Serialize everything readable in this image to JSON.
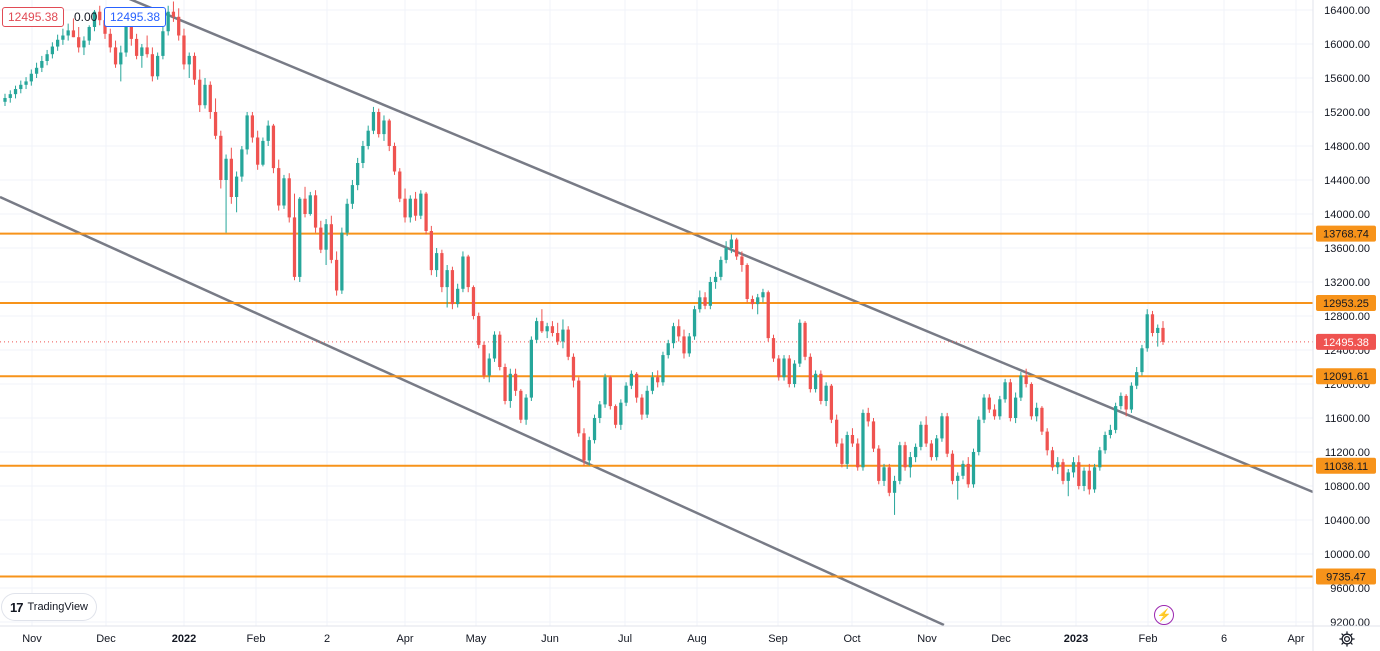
{
  "header": {
    "price_red": "12495.38",
    "change": "0.00",
    "price_blue": "12495.38"
  },
  "branding": {
    "logo_text": "TradingView"
  },
  "colors": {
    "up": "#26a69a",
    "down": "#ef5350",
    "level": "#f7931a",
    "channel": "#787b86"
  },
  "chart_data": {
    "type": "candlestick",
    "y_axis": {
      "min": 9200,
      "max": 16400,
      "ticks": [
        9200,
        9600,
        10000,
        10400,
        10800,
        11200,
        11600,
        12000,
        12400,
        12800,
        13200,
        13600,
        14000,
        14400,
        14800,
        15200,
        15600,
        16000,
        16400
      ]
    },
    "x_axis": {
      "labels": [
        "Nov",
        "Dec",
        "2022",
        "Feb",
        "2",
        "Apr",
        "May",
        "Jun",
        "Jul",
        "Aug",
        "Sep",
        "Oct",
        "Nov",
        "Dec",
        "2023",
        "Feb",
        "6",
        "Apr"
      ]
    },
    "last_price": 12495.38,
    "levels": [
      13768.74,
      12953.25,
      12091.61,
      11038.11,
      9735.47
    ],
    "level_labels": [
      "13768.74",
      "12953.25",
      "12091.61",
      "11038.11",
      "9735.47"
    ],
    "last_price_label": "12495.38",
    "trend_lines": [
      {
        "from": [
          "Dec 2021",
          16500
        ],
        "to": [
          "Apr 2023",
          10700
        ]
      },
      {
        "from": [
          "Nov 2021",
          14200
        ],
        "to": [
          "Nov 2022",
          9100
        ]
      }
    ],
    "candles": [
      [
        15320,
        15415,
        15270,
        15365
      ],
      [
        15365,
        15455,
        15310,
        15410
      ],
      [
        15410,
        15510,
        15360,
        15470
      ],
      [
        15470,
        15570,
        15420,
        15520
      ],
      [
        15520,
        15610,
        15470,
        15560
      ],
      [
        15560,
        15700,
        15510,
        15650
      ],
      [
        15650,
        15780,
        15600,
        15720
      ],
      [
        15720,
        15860,
        15670,
        15800
      ],
      [
        15800,
        15930,
        15750,
        15880
      ],
      [
        15880,
        16020,
        15830,
        15970
      ],
      [
        15970,
        16110,
        15920,
        16050
      ],
      [
        16050,
        16180,
        15990,
        16100
      ],
      [
        16100,
        16240,
        16040,
        16160
      ],
      [
        16160,
        16300,
        16080,
        16080
      ],
      [
        16080,
        16200,
        15900,
        15960
      ],
      [
        15960,
        16090,
        15870,
        16040
      ],
      [
        16040,
        16220,
        15990,
        16200
      ],
      [
        16200,
        16400,
        16150,
        16380
      ],
      [
        16380,
        16450,
        16220,
        16280
      ],
      [
        16280,
        16330,
        16060,
        16120
      ],
      [
        16120,
        16180,
        15900,
        15960
      ],
      [
        15960,
        16040,
        15720,
        15760
      ],
      [
        15760,
        15980,
        15560,
        15900
      ],
      [
        15900,
        16280,
        15850,
        16220
      ],
      [
        16220,
        16300,
        15980,
        16060
      ],
      [
        16060,
        16120,
        15820,
        15860
      ],
      [
        15860,
        16000,
        15720,
        15960
      ],
      [
        15960,
        16100,
        15840,
        15880
      ],
      [
        15880,
        15960,
        15560,
        15620
      ],
      [
        15620,
        15900,
        15580,
        15860
      ],
      [
        15860,
        16200,
        15820,
        16150
      ],
      [
        16150,
        16450,
        16100,
        16380
      ],
      [
        16380,
        16500,
        16260,
        16320
      ],
      [
        16320,
        16420,
        16040,
        16100
      ],
      [
        16100,
        16180,
        15700,
        15760
      ],
      [
        15760,
        15900,
        15600,
        15860
      ],
      [
        15860,
        15900,
        15520,
        15580
      ],
      [
        15580,
        15700,
        15200,
        15280
      ],
      [
        15280,
        15600,
        15240,
        15520
      ],
      [
        15520,
        15560,
        15120,
        15200
      ],
      [
        15200,
        15360,
        14880,
        14920
      ],
      [
        14920,
        14980,
        14300,
        14400
      ],
      [
        14400,
        14700,
        13780,
        14650
      ],
      [
        14650,
        14780,
        14120,
        14200
      ],
      [
        14200,
        14500,
        14020,
        14440
      ],
      [
        14440,
        14800,
        14380,
        14760
      ],
      [
        14760,
        15200,
        14700,
        15160
      ],
      [
        15160,
        15200,
        14840,
        14900
      ],
      [
        14900,
        14980,
        14520,
        14580
      ],
      [
        14580,
        14900,
        14560,
        14860
      ],
      [
        14860,
        15100,
        14800,
        15040
      ],
      [
        15040,
        15060,
        14480,
        14540
      ],
      [
        14540,
        14640,
        14040,
        14100
      ],
      [
        14100,
        14460,
        14060,
        14420
      ],
      [
        14420,
        14480,
        13900,
        13960
      ],
      [
        13960,
        14240,
        13220,
        13260
      ],
      [
        13260,
        14200,
        13200,
        14180
      ],
      [
        14180,
        14320,
        13960,
        14000
      ],
      [
        14000,
        14260,
        13980,
        14220
      ],
      [
        14220,
        14280,
        13780,
        13840
      ],
      [
        13840,
        13920,
        13540,
        13580
      ],
      [
        13580,
        13940,
        13400,
        13880
      ],
      [
        13880,
        13980,
        13420,
        13460
      ],
      [
        13460,
        13560,
        13040,
        13100
      ],
      [
        13100,
        13840,
        13060,
        13780
      ],
      [
        13780,
        14180,
        13740,
        14120
      ],
      [
        14120,
        14400,
        14060,
        14340
      ],
      [
        14340,
        14660,
        14280,
        14600
      ],
      [
        14600,
        14860,
        14540,
        14800
      ],
      [
        14800,
        15040,
        14760,
        14980
      ],
      [
        14980,
        15260,
        14940,
        15200
      ],
      [
        15200,
        15240,
        14900,
        14940
      ],
      [
        14940,
        15160,
        14860,
        15100
      ],
      [
        15100,
        15120,
        14740,
        14800
      ],
      [
        14800,
        14840,
        14460,
        14500
      ],
      [
        14500,
        14540,
        14140,
        14180
      ],
      [
        14180,
        14300,
        13900,
        13960
      ],
      [
        13960,
        14220,
        13900,
        14180
      ],
      [
        14180,
        14260,
        13920,
        13980
      ],
      [
        13980,
        14280,
        13940,
        14240
      ],
      [
        14240,
        14260,
        13760,
        13800
      ],
      [
        13800,
        13860,
        13280,
        13340
      ],
      [
        13340,
        13600,
        13260,
        13540
      ],
      [
        13540,
        13580,
        13080,
        13140
      ],
      [
        13140,
        13400,
        12900,
        13340
      ],
      [
        13340,
        13380,
        12880,
        12940
      ],
      [
        12940,
        13180,
        12900,
        13120
      ],
      [
        13120,
        13560,
        13080,
        13500
      ],
      [
        13500,
        13520,
        13080,
        13140
      ],
      [
        13140,
        13160,
        12760,
        12800
      ],
      [
        12800,
        12840,
        12420,
        12460
      ],
      [
        12460,
        12500,
        12060,
        12100
      ],
      [
        12100,
        12360,
        12020,
        12300
      ],
      [
        12300,
        12620,
        12260,
        12580
      ],
      [
        12580,
        12620,
        12160,
        12200
      ],
      [
        12200,
        12240,
        11760,
        11800
      ],
      [
        11800,
        12180,
        11720,
        12120
      ],
      [
        12120,
        12180,
        11860,
        11920
      ],
      [
        11920,
        11940,
        11540,
        11580
      ],
      [
        11580,
        11880,
        11520,
        11840
      ],
      [
        11840,
        12560,
        11800,
        12520
      ],
      [
        12520,
        12780,
        12480,
        12740
      ],
      [
        12740,
        12880,
        12600,
        12620
      ],
      [
        12620,
        12720,
        12540,
        12680
      ],
      [
        12680,
        12740,
        12560,
        12600
      ],
      [
        12600,
        12720,
        12460,
        12500
      ],
      [
        12500,
        12760,
        12420,
        12640
      ],
      [
        12640,
        12680,
        12280,
        12320
      ],
      [
        12320,
        12360,
        11960,
        12040
      ],
      [
        12040,
        12080,
        11380,
        11420
      ],
      [
        11420,
        11480,
        11040,
        11100
      ],
      [
        11100,
        11380,
        11040,
        11340
      ],
      [
        11340,
        11640,
        11300,
        11600
      ],
      [
        11600,
        11800,
        11540,
        11760
      ],
      [
        11760,
        12120,
        11720,
        12080
      ],
      [
        12080,
        12100,
        11700,
        11740
      ],
      [
        11740,
        11760,
        11480,
        11520
      ],
      [
        11520,
        11820,
        11460,
        11780
      ],
      [
        11780,
        12020,
        11740,
        11980
      ],
      [
        11980,
        12160,
        11940,
        12120
      ],
      [
        12120,
        12140,
        11780,
        11840
      ],
      [
        11840,
        11880,
        11580,
        11640
      ],
      [
        11640,
        11980,
        11600,
        11920
      ],
      [
        11920,
        12140,
        11880,
        12080
      ],
      [
        12080,
        12160,
        11960,
        12020
      ],
      [
        12020,
        12380,
        11980,
        12340
      ],
      [
        12340,
        12520,
        12300,
        12480
      ],
      [
        12480,
        12720,
        12420,
        12680
      ],
      [
        12680,
        12760,
        12500,
        12560
      ],
      [
        12560,
        12640,
        12300,
        12360
      ],
      [
        12360,
        12600,
        12320,
        12560
      ],
      [
        12560,
        12920,
        12520,
        12880
      ],
      [
        12880,
        13100,
        12840,
        13020
      ],
      [
        13020,
        13080,
        12880,
        12920
      ],
      [
        12920,
        13260,
        12880,
        13200
      ],
      [
        13200,
        13320,
        13120,
        13260
      ],
      [
        13260,
        13500,
        13220,
        13460
      ],
      [
        13460,
        13680,
        13420,
        13600
      ],
      [
        13600,
        13760,
        13540,
        13700
      ],
      [
        13700,
        13720,
        13460,
        13500
      ],
      [
        13500,
        13560,
        13320,
        13400
      ],
      [
        13400,
        13420,
        12960,
        13000
      ],
      [
        13000,
        13040,
        12880,
        12940
      ],
      [
        12940,
        13060,
        12820,
        13020
      ],
      [
        13020,
        13120,
        12960,
        13080
      ],
      [
        13080,
        13100,
        12500,
        12540
      ],
      [
        12540,
        12580,
        12260,
        12300
      ],
      [
        12300,
        12340,
        12040,
        12080
      ],
      [
        12080,
        12340,
        12040,
        12300
      ],
      [
        12300,
        12340,
        11960,
        12000
      ],
      [
        12000,
        12280,
        11960,
        12240
      ],
      [
        12240,
        12760,
        12200,
        12720
      ],
      [
        12720,
        12740,
        12280,
        12320
      ],
      [
        12320,
        12360,
        11900,
        11940
      ],
      [
        11940,
        12160,
        11900,
        12120
      ],
      [
        12120,
        12160,
        11760,
        11800
      ],
      [
        11800,
        12020,
        11740,
        11980
      ],
      [
        11980,
        12000,
        11540,
        11580
      ],
      [
        11580,
        11640,
        11260,
        11300
      ],
      [
        11300,
        11360,
        11020,
        11060
      ],
      [
        11060,
        11440,
        11000,
        11400
      ],
      [
        11400,
        11480,
        11260,
        11300
      ],
      [
        11300,
        11360,
        10980,
        11020
      ],
      [
        11020,
        11700,
        10980,
        11660
      ],
      [
        11660,
        11720,
        11500,
        11560
      ],
      [
        11560,
        11600,
        11200,
        11240
      ],
      [
        11240,
        11280,
        10820,
        10860
      ],
      [
        10860,
        11060,
        10800,
        11020
      ],
      [
        11020,
        11060,
        10680,
        10720
      ],
      [
        10720,
        10920,
        10460,
        10860
      ],
      [
        10860,
        11320,
        10820,
        11280
      ],
      [
        11280,
        11320,
        10980,
        11020
      ],
      [
        11020,
        11200,
        10900,
        11140
      ],
      [
        11140,
        11300,
        11080,
        11260
      ],
      [
        11260,
        11560,
        11220,
        11520
      ],
      [
        11520,
        11620,
        11260,
        11300
      ],
      [
        11300,
        11340,
        11100,
        11140
      ],
      [
        11140,
        11400,
        11100,
        11360
      ],
      [
        11360,
        11660,
        11320,
        11620
      ],
      [
        11620,
        11660,
        11140,
        11180
      ],
      [
        11180,
        11220,
        10820,
        10860
      ],
      [
        10860,
        10960,
        10640,
        10920
      ],
      [
        10920,
        11100,
        10880,
        11060
      ],
      [
        11060,
        11140,
        10780,
        10820
      ],
      [
        10820,
        11240,
        10780,
        11200
      ],
      [
        11200,
        11620,
        11160,
        11580
      ],
      [
        11580,
        11880,
        11540,
        11840
      ],
      [
        11840,
        11880,
        11660,
        11700
      ],
      [
        11700,
        11760,
        11580,
        11620
      ],
      [
        11620,
        11860,
        11580,
        11820
      ],
      [
        11820,
        12060,
        11780,
        12020
      ],
      [
        12020,
        12060,
        11560,
        11600
      ],
      [
        11600,
        11900,
        11540,
        11840
      ],
      [
        11840,
        12140,
        11800,
        12100
      ],
      [
        12100,
        12180,
        11960,
        12000
      ],
      [
        12000,
        12020,
        11580,
        11620
      ],
      [
        11620,
        11780,
        11560,
        11720
      ],
      [
        11720,
        11740,
        11400,
        11440
      ],
      [
        11440,
        11480,
        11160,
        11220
      ],
      [
        11220,
        11260,
        10980,
        11020
      ],
      [
        11020,
        11140,
        10940,
        11080
      ],
      [
        11080,
        11120,
        10820,
        10860
      ],
      [
        10860,
        11000,
        10680,
        10960
      ],
      [
        10960,
        11140,
        10900,
        11080
      ],
      [
        11080,
        11160,
        10760,
        10800
      ],
      [
        10800,
        11020,
        10740,
        10980
      ],
      [
        10980,
        11060,
        10700,
        10760
      ],
      [
        10760,
        11060,
        10720,
        11020
      ],
      [
        11020,
        11260,
        10980,
        11220
      ],
      [
        11220,
        11440,
        11180,
        11400
      ],
      [
        11400,
        11520,
        11360,
        11460
      ],
      [
        11460,
        11780,
        11420,
        11740
      ],
      [
        11740,
        11900,
        11700,
        11860
      ],
      [
        11860,
        11880,
        11620,
        11700
      ],
      [
        11700,
        12020,
        11660,
        11980
      ],
      [
        11980,
        12200,
        11940,
        12140
      ],
      [
        12140,
        12460,
        12100,
        12420
      ],
      [
        12420,
        12880,
        12380,
        12820
      ],
      [
        12820,
        12860,
        12560,
        12600
      ],
      [
        12600,
        12700,
        12440,
        12660
      ],
      [
        12660,
        12740,
        12460,
        12495.38
      ]
    ]
  }
}
